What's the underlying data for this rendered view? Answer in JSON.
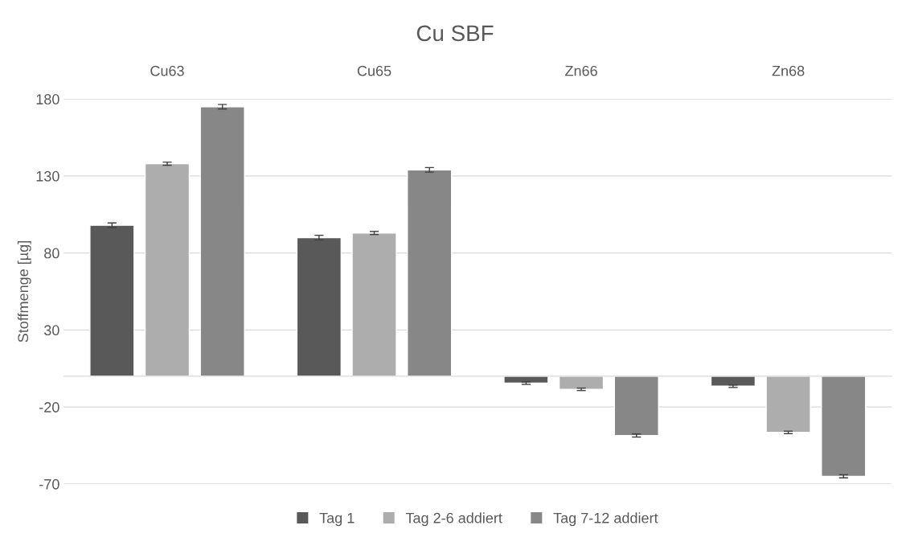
{
  "chart_data": {
    "type": "bar",
    "title": "Cu SBF",
    "ylabel": "Stoffmenge [µg]",
    "categories": [
      "Cu63",
      "Cu65",
      "Zn66",
      "Zn68"
    ],
    "series": [
      {
        "name": "Tag 1",
        "color": "#595959",
        "values": [
          98,
          90,
          -4.5,
          -6.5
        ],
        "errors": [
          1.5,
          1.5,
          0.8,
          0.8
        ]
      },
      {
        "name": "Tag 2-6 addiert",
        "color": "#adadad",
        "values": [
          138,
          93,
          -8.5,
          -36.5
        ],
        "errors": [
          1,
          1,
          0.8,
          0.8
        ]
      },
      {
        "name": "Tag 7-12 addiert",
        "color": "#878787",
        "values": [
          175,
          134,
          -38.5,
          -65
        ],
        "errors": [
          1.5,
          1.5,
          1,
          1
        ]
      }
    ],
    "ylim": [
      -70,
      180
    ],
    "yticks": [
      -70,
      -20,
      30,
      80,
      130,
      180
    ],
    "grid": "y",
    "legend": "bottom"
  }
}
